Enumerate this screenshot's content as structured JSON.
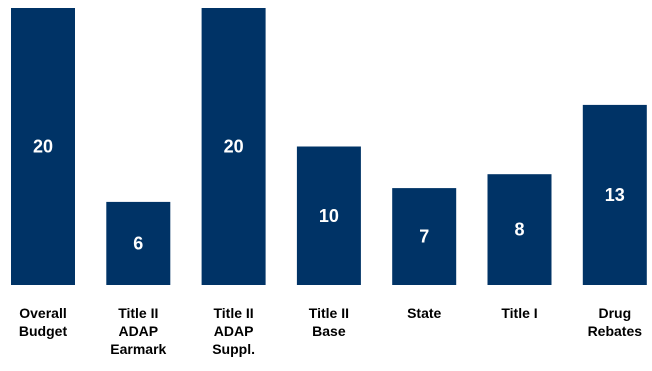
{
  "chart_data": {
    "type": "bar",
    "categories": [
      [
        "Overall",
        "Budget"
      ],
      [
        "Title II",
        "ADAP",
        "Earmark"
      ],
      [
        "Title II",
        "ADAP",
        "Suppl."
      ],
      [
        "Title II",
        "Base"
      ],
      [
        "State"
      ],
      [
        "Title I"
      ],
      [
        "Drug",
        "Rebates"
      ]
    ],
    "values": [
      20,
      6,
      20,
      10,
      7,
      8,
      13
    ],
    "data_labels": [
      "20",
      "6",
      "20",
      "10",
      "7",
      "8",
      "13"
    ],
    "ylim": [
      0,
      20
    ],
    "grid": false,
    "legend": "none",
    "colors": {
      "bar": "#003366",
      "value_label": "#ffffff",
      "category_label": "#000000"
    }
  }
}
